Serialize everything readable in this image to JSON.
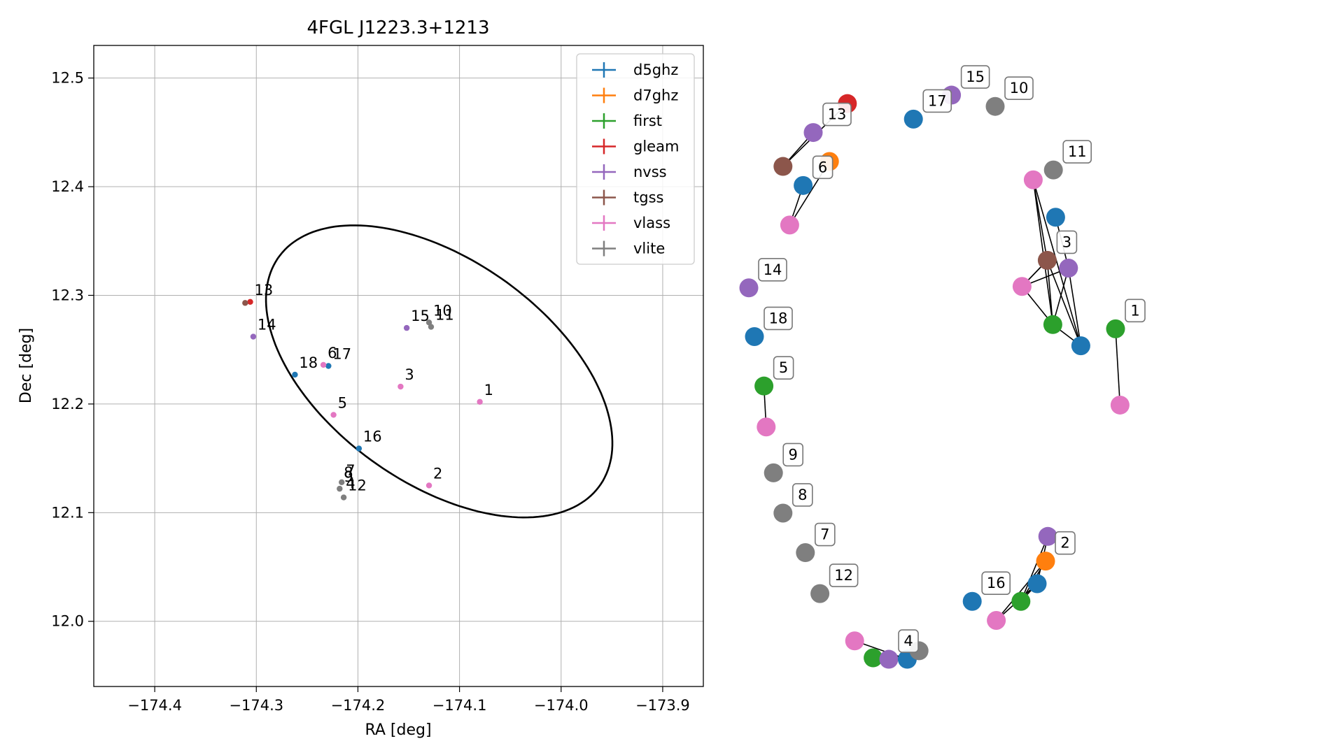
{
  "chart_data": [
    {
      "type": "scatter",
      "title": "4FGL J1223.3+1213",
      "xlabel": "RA [deg]",
      "ylabel": "Dec [deg]",
      "xlim": [
        -174.46,
        -173.86
      ],
      "ylim": [
        11.94,
        12.53
      ],
      "xticks": [
        -174.4,
        -174.3,
        -174.2,
        -174.1,
        -174.0,
        -173.9
      ],
      "xtick_labels": [
        "−174.4",
        "−174.3",
        "−174.2",
        "−174.1",
        "−174.0",
        "−173.9"
      ],
      "yticks": [
        12.0,
        12.1,
        12.2,
        12.3,
        12.4,
        12.5
      ],
      "ytick_labels": [
        "12.0",
        "12.1",
        "12.2",
        "12.3",
        "12.4",
        "12.5"
      ],
      "grid": true,
      "legend_position": "upper-right",
      "series": [
        {
          "name": "d5ghz",
          "color": "#1f77b4",
          "points": [
            [
              -174.262,
              12.227
            ],
            [
              -174.229,
              12.235
            ],
            [
              -174.199,
              12.159
            ]
          ]
        },
        {
          "name": "d7ghz",
          "color": "#ff7f0e",
          "points": []
        },
        {
          "name": "first",
          "color": "#2ca02c",
          "points": []
        },
        {
          "name": "gleam",
          "color": "#d62728",
          "points": [
            [
              -174.306,
              12.294
            ]
          ]
        },
        {
          "name": "nvss",
          "color": "#9467bd",
          "points": [
            [
              -174.303,
              12.262
            ],
            [
              -174.152,
              12.27
            ]
          ]
        },
        {
          "name": "tgss",
          "color": "#8c564b",
          "points": [
            [
              -174.311,
              12.293
            ]
          ]
        },
        {
          "name": "vlass",
          "color": "#e377c2",
          "points": [
            [
              -174.234,
              12.236
            ],
            [
              -174.224,
              12.19
            ],
            [
              -174.158,
              12.216
            ],
            [
              -174.13,
              12.125
            ],
            [
              -174.08,
              12.202
            ]
          ]
        },
        {
          "name": "vlite",
          "color": "#7f7f7f",
          "points": [
            [
              -174.216,
              12.128
            ],
            [
              -174.218,
              12.122
            ],
            [
              -174.214,
              12.114
            ],
            [
              -174.13,
              12.275
            ],
            [
              -174.128,
              12.271
            ]
          ]
        }
      ],
      "annotations": [
        {
          "text": "13",
          "x": -174.306,
          "y": 12.294
        },
        {
          "text": "14",
          "x": -174.303,
          "y": 12.262
        },
        {
          "text": "18",
          "x": -174.262,
          "y": 12.227
        },
        {
          "text": "6",
          "x": -174.234,
          "y": 12.236
        },
        {
          "text": "17",
          "x": -174.229,
          "y": 12.235
        },
        {
          "text": "5",
          "x": -174.224,
          "y": 12.19
        },
        {
          "text": "16",
          "x": -174.199,
          "y": 12.159
        },
        {
          "text": "7",
          "x": -174.216,
          "y": 12.128
        },
        {
          "text": "8",
          "x": -174.218,
          "y": 12.126
        },
        {
          "text": "9",
          "x": -174.218,
          "y": 12.122
        },
        {
          "text": "4",
          "x": -174.216,
          "y": 12.116
        },
        {
          "text": "12",
          "x": -174.214,
          "y": 12.114
        },
        {
          "text": "3",
          "x": -174.158,
          "y": 12.216
        },
        {
          "text": "15",
          "x": -174.152,
          "y": 12.27
        },
        {
          "text": "10",
          "x": -174.13,
          "y": 12.275
        },
        {
          "text": "11",
          "x": -174.128,
          "y": 12.271
        },
        {
          "text": "2",
          "x": -174.13,
          "y": 12.125
        },
        {
          "text": "1",
          "x": -174.08,
          "y": 12.202
        }
      ],
      "ellipse": {
        "center": [
          -174.12,
          12.23
        ],
        "semi_major_deg": 0.19,
        "semi_minor_deg": 0.105,
        "pa_deg": 148
      }
    },
    {
      "type": "network",
      "nodes": [
        {
          "cat": "gleam",
          "x": 0.176,
          "y": 0.117
        },
        {
          "cat": "nvss",
          "x": 0.115,
          "y": 0.158
        },
        {
          "cat": "tgss",
          "x": 0.061,
          "y": 0.206
        },
        {
          "cat": "d7ghz",
          "x": 0.144,
          "y": 0.199
        },
        {
          "cat": "d5ghz",
          "x": 0.097,
          "y": 0.233
        },
        {
          "cat": "vlass",
          "x": 0.073,
          "y": 0.289
        },
        {
          "cat": "d5ghz",
          "x": 0.294,
          "y": 0.139
        },
        {
          "cat": "nvss",
          "x": 0.362,
          "y": 0.105
        },
        {
          "cat": "vlite",
          "x": 0.44,
          "y": 0.121
        },
        {
          "cat": "vlite",
          "x": 0.544,
          "y": 0.211
        },
        {
          "cat": "vlass",
          "x": 0.508,
          "y": 0.225
        },
        {
          "cat": "d5ghz",
          "x": 0.548,
          "y": 0.278
        },
        {
          "cat": "tgss",
          "x": 0.533,
          "y": 0.339
        },
        {
          "cat": "nvss",
          "x": 0.571,
          "y": 0.35
        },
        {
          "cat": "vlass",
          "x": 0.488,
          "y": 0.376
        },
        {
          "cat": "first",
          "x": 0.543,
          "y": 0.43
        },
        {
          "cat": "d5ghz",
          "x": 0.593,
          "y": 0.46
        },
        {
          "cat": "first",
          "x": 0.655,
          "y": 0.436
        },
        {
          "cat": "vlass",
          "x": 0.663,
          "y": 0.544
        },
        {
          "cat": "nvss",
          "x": 0.0,
          "y": 0.378
        },
        {
          "cat": "d5ghz",
          "x": 0.01,
          "y": 0.447
        },
        {
          "cat": "first",
          "x": 0.027,
          "y": 0.517
        },
        {
          "cat": "vlass",
          "x": 0.031,
          "y": 0.575
        },
        {
          "cat": "vlite",
          "x": 0.044,
          "y": 0.64
        },
        {
          "cat": "vlite",
          "x": 0.061,
          "y": 0.697
        },
        {
          "cat": "vlite",
          "x": 0.101,
          "y": 0.753
        },
        {
          "cat": "vlite",
          "x": 0.127,
          "y": 0.811
        },
        {
          "cat": "vlass",
          "x": 0.189,
          "y": 0.878
        },
        {
          "cat": "first",
          "x": 0.222,
          "y": 0.902
        },
        {
          "cat": "nvss",
          "x": 0.25,
          "y": 0.904
        },
        {
          "cat": "d5ghz",
          "x": 0.283,
          "y": 0.904
        },
        {
          "cat": "vlite",
          "x": 0.304,
          "y": 0.892
        },
        {
          "cat": "d5ghz",
          "x": 0.399,
          "y": 0.822
        },
        {
          "cat": "vlass",
          "x": 0.442,
          "y": 0.849
        },
        {
          "cat": "first",
          "x": 0.486,
          "y": 0.822
        },
        {
          "cat": "d5ghz",
          "x": 0.515,
          "y": 0.797
        },
        {
          "cat": "d7ghz",
          "x": 0.53,
          "y": 0.765
        },
        {
          "cat": "nvss",
          "x": 0.534,
          "y": 0.73
        }
      ],
      "edges": [
        [
          0,
          2
        ],
        [
          1,
          2
        ],
        [
          4,
          5
        ],
        [
          3,
          5
        ],
        [
          10,
          12
        ],
        [
          10,
          15
        ],
        [
          10,
          16
        ],
        [
          12,
          14
        ],
        [
          12,
          15
        ],
        [
          12,
          16
        ],
        [
          11,
          13
        ],
        [
          13,
          15
        ],
        [
          13,
          16
        ],
        [
          14,
          12
        ],
        [
          14,
          13
        ],
        [
          14,
          15
        ],
        [
          15,
          16
        ],
        [
          17,
          18
        ],
        [
          21,
          22
        ],
        [
          27,
          30
        ],
        [
          28,
          30
        ],
        [
          28,
          29
        ],
        [
          29,
          31
        ],
        [
          30,
          31
        ],
        [
          33,
          35
        ],
        [
          33,
          36
        ],
        [
          34,
          35
        ],
        [
          34,
          36
        ],
        [
          35,
          37
        ],
        [
          34,
          37
        ]
      ],
      "labels": [
        {
          "text": "13",
          "near": 1
        },
        {
          "text": "6",
          "near": 4
        },
        {
          "text": "17",
          "near": 6
        },
        {
          "text": "15",
          "near": 7
        },
        {
          "text": "10",
          "near": 8
        },
        {
          "text": "11",
          "near": 9
        },
        {
          "text": "3",
          "near": 12
        },
        {
          "text": "1",
          "near": 17
        },
        {
          "text": "14",
          "near": 19
        },
        {
          "text": "18",
          "near": 20
        },
        {
          "text": "5",
          "near": 21
        },
        {
          "text": "9",
          "near": 23
        },
        {
          "text": "8",
          "near": 24
        },
        {
          "text": "7",
          "near": 25
        },
        {
          "text": "12",
          "near": 26
        },
        {
          "text": "4",
          "near": 29
        },
        {
          "text": "16",
          "near": 32
        },
        {
          "text": "2",
          "near": 36
        }
      ]
    }
  ]
}
